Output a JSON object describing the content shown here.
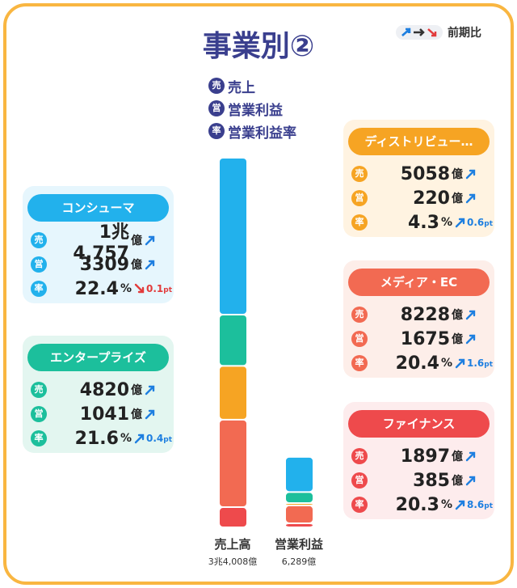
{
  "title": "事業別②",
  "compare_label": "前期比",
  "legend": [
    {
      "badge": "売",
      "label": "売上"
    },
    {
      "badge": "営",
      "label": "営業利益"
    },
    {
      "badge": "率",
      "label": "営業利益率"
    }
  ],
  "units": {
    "oku": "億",
    "pct": "%",
    "pt": "pt"
  },
  "segments": [
    {
      "name": "コンシューマ",
      "color": "#22b1ec",
      "light": "#e6f6fd",
      "sales": {
        "value": 14757,
        "label": "1兆4,757"
      },
      "sales_trend": "up",
      "profit": 3309,
      "profit_trend": "up",
      "margin": 22.4,
      "margin_trend": "down",
      "margin_change": 0.1
    },
    {
      "name": "エンタープライズ",
      "color": "#1cbf9c",
      "light": "#e3f6f0",
      "sales": 4820,
      "sales_trend": "up",
      "profit": 1041,
      "profit_trend": "up",
      "margin": 21.6,
      "margin_trend": "up",
      "margin_change": 0.4
    },
    {
      "name": "ディストリビュー…",
      "color": "#f6a423",
      "light": "#fff3e1",
      "sales": 5058,
      "sales_trend": "up",
      "profit": 220,
      "profit_trend": "up",
      "margin": 4.3,
      "margin_trend": "up",
      "margin_change": 0.6
    },
    {
      "name": "メディア・EC",
      "color": "#f26a52",
      "light": "#fdeee9",
      "sales": 8228,
      "sales_trend": "up",
      "profit": 1675,
      "profit_trend": "up",
      "margin": 20.4,
      "margin_trend": "up",
      "margin_change": 1.6
    },
    {
      "name": "ファイナンス",
      "color": "#ee4a4c",
      "light": "#fdeced",
      "sales": 1897,
      "sales_trend": "up",
      "profit": 385,
      "profit_trend": "up",
      "margin": 20.3,
      "margin_trend": "up",
      "margin_change": 8.6
    }
  ],
  "bars": [
    {
      "label": "売上高",
      "total": "3兆4,008億"
    },
    {
      "label": "営業利益",
      "total": "6,289億"
    }
  ]
}
